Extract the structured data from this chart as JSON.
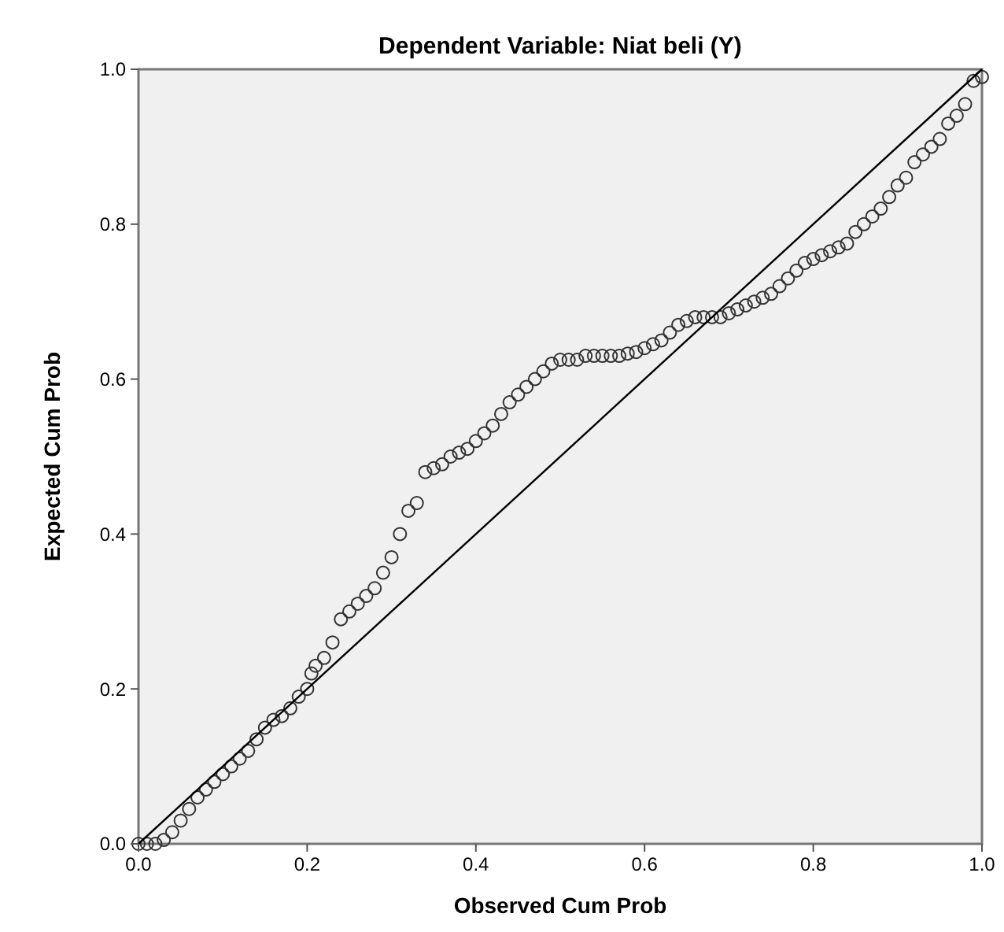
{
  "chart_data": {
    "type": "scatter",
    "title": "Dependent Variable: Niat beli (Y)",
    "xlabel": "Observed Cum Prob",
    "ylabel": "Expected Cum Prob",
    "xlim": [
      0,
      1
    ],
    "ylim": [
      0,
      1
    ],
    "xticks": [
      {
        "value": 0,
        "label": "0.0"
      },
      0.2,
      0.4,
      0.6,
      0.8,
      {
        "value": 1,
        "label": "1.0"
      }
    ],
    "yticks": [
      {
        "value": 0,
        "label": "0.0"
      },
      0.2,
      0.4,
      0.6,
      0.8,
      {
        "value": 1,
        "label": "1.0"
      }
    ],
    "grid": false,
    "series": [
      {
        "type": "scatter",
        "marker": "circle",
        "color": "#333333",
        "x": [
          0,
          0.01,
          0.02,
          0.03,
          0.04,
          0.05,
          0.06,
          0.07,
          0.08,
          0.09,
          0.1,
          0.11,
          0.12,
          0.13,
          0.14,
          0.15,
          0.16,
          0.17,
          0.18,
          0.19,
          0.2,
          0.205,
          0.21,
          0.22,
          0.23,
          0.24,
          0.25,
          0.26,
          0.27,
          0.28,
          0.29,
          0.3,
          0.31,
          0.32,
          0.33,
          0.34,
          0.35,
          0.36,
          0.37,
          0.38,
          0.39,
          0.4,
          0.41,
          0.42,
          0.43,
          0.44,
          0.45,
          0.46,
          0.47,
          0.48,
          0.49,
          0.5,
          0.51,
          0.52,
          0.53,
          0.54,
          0.55,
          0.56,
          0.57,
          0.58,
          0.59,
          0.6,
          0.61,
          0.62,
          0.63,
          0.64,
          0.65,
          0.66,
          0.67,
          0.68,
          0.69,
          0.7,
          0.71,
          0.72,
          0.73,
          0.74,
          0.75,
          0.76,
          0.77,
          0.78,
          0.79,
          0.8,
          0.81,
          0.82,
          0.83,
          0.84,
          0.85,
          0.86,
          0.87,
          0.88,
          0.89,
          0.9,
          0.91,
          0.92,
          0.93,
          0.94,
          0.95,
          0.96,
          0.97,
          0.98,
          0.99,
          1.0
        ],
        "values": [
          0,
          0,
          0,
          0.005,
          0.015,
          0.03,
          0.045,
          0.06,
          0.07,
          0.08,
          0.09,
          0.1,
          0.11,
          0.12,
          0.135,
          0.15,
          0.16,
          0.165,
          0.175,
          0.19,
          0.2,
          0.22,
          0.23,
          0.24,
          0.26,
          0.29,
          0.3,
          0.31,
          0.32,
          0.33,
          0.35,
          0.37,
          0.4,
          0.43,
          0.44,
          0.48,
          0.485,
          0.49,
          0.5,
          0.505,
          0.51,
          0.52,
          0.53,
          0.54,
          0.555,
          0.57,
          0.58,
          0.59,
          0.6,
          0.61,
          0.62,
          0.625,
          0.625,
          0.625,
          0.63,
          0.63,
          0.63,
          0.63,
          0.63,
          0.633,
          0.635,
          0.64,
          0.645,
          0.65,
          0.66,
          0.67,
          0.675,
          0.68,
          0.68,
          0.68,
          0.68,
          0.685,
          0.69,
          0.695,
          0.7,
          0.705,
          0.71,
          0.72,
          0.73,
          0.74,
          0.75,
          0.755,
          0.76,
          0.765,
          0.77,
          0.775,
          0.79,
          0.8,
          0.81,
          0.82,
          0.835,
          0.85,
          0.86,
          0.88,
          0.89,
          0.9,
          0.91,
          0.93,
          0.94,
          0.955,
          0.985,
          0.99
        ]
      },
      {
        "type": "line",
        "marker": "none",
        "line_style": "solid",
        "color": "#000000",
        "x": [
          0,
          1
        ],
        "values": [
          0,
          1
        ]
      }
    ]
  }
}
